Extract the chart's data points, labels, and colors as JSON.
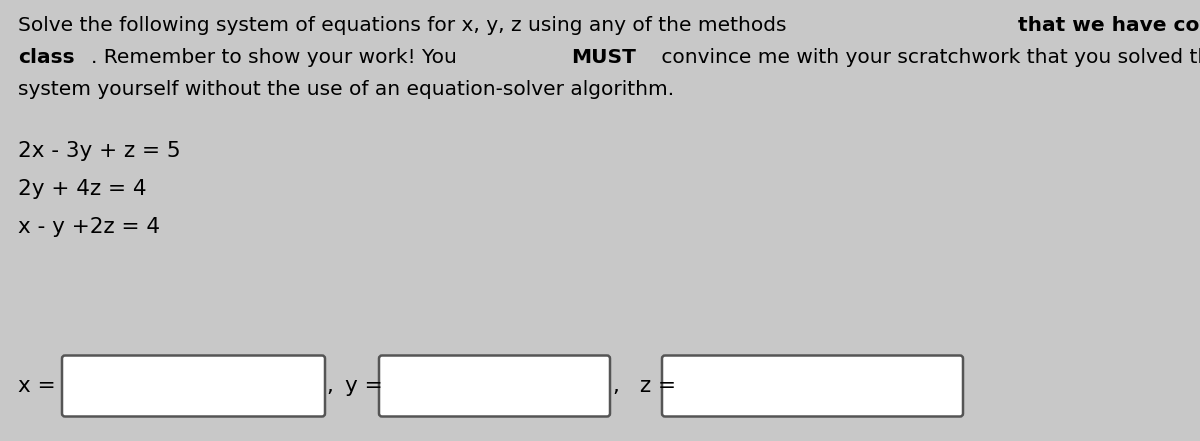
{
  "background_color": "#c8c8c8",
  "equations": [
    "2x - 3y + z = 5",
    "2y + 4z = 4",
    "x - y +2z = 4"
  ],
  "answer_labels": [
    "x =",
    "y =",
    "z ="
  ],
  "font_size_title": 14.5,
  "font_size_eq": 15.5,
  "font_size_answer": 15.5,
  "line1_segments": [
    {
      "text": "Solve the following system of equations for x, y, z using any of the methods ",
      "bold": false
    },
    {
      "text": "that we have covered in",
      "bold": true
    }
  ],
  "line2_segments": [
    {
      "text": "class",
      "bold": true
    },
    {
      "text": ". Remember to show your work! You ",
      "bold": false
    },
    {
      "text": "MUST",
      "bold": true
    },
    {
      "text": " convince me with your scratchwork that you solved this",
      "bold": false
    }
  ],
  "line3_segments": [
    {
      "text": "system yourself without the use of an equation-solver algorithm.",
      "bold": false
    }
  ]
}
